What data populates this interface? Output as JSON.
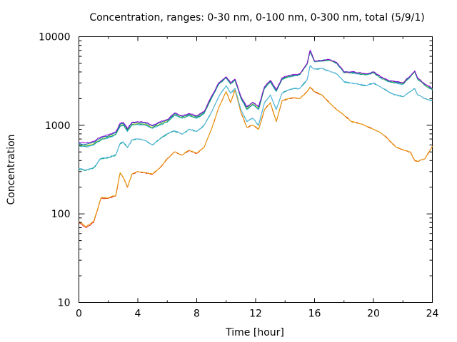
{
  "chart_data": {
    "type": "line",
    "title": "Concentration, ranges: 0-30 nm, 0-100 nm, 0-300 nm, total (5/9/1)",
    "xlabel": "Time [hour]",
    "ylabel": "Concentration",
    "xlim": [
      0,
      24
    ],
    "ylim": [
      10,
      10000
    ],
    "yscale": "log",
    "grid": false,
    "legend": "none",
    "x_ticks": [
      0,
      4,
      8,
      12,
      16,
      20,
      24
    ],
    "x_tick_labels": [
      "0",
      "4",
      "8",
      "12",
      "16",
      "20",
      "24"
    ],
    "y_ticks": [
      10,
      100,
      1000,
      10000
    ],
    "y_tick_labels": [
      "10",
      "100",
      "1000",
      "10000"
    ],
    "x": [
      0,
      0.5,
      1,
      1.5,
      2,
      2.5,
      2.8,
      3,
      3.3,
      3.6,
      4,
      4.5,
      5,
      5.5,
      6,
      6.5,
      7,
      7.5,
      8,
      8.5,
      9,
      9.5,
      10,
      10.3,
      10.6,
      11,
      11.4,
      11.8,
      12.2,
      12.6,
      13,
      13.4,
      13.8,
      14.2,
      14.6,
      15,
      15.5,
      15.7,
      16,
      16.5,
      17,
      17.5,
      18,
      18.5,
      19,
      19.5,
      20,
      20.5,
      21,
      21.5,
      22,
      22.5,
      22.8,
      23,
      23.5,
      24
    ],
    "series": [
      {
        "color": "#e51e10",
        "values": [
          80,
          70,
          80,
          150,
          150,
          160,
          290,
          260,
          200,
          280,
          300,
          290,
          280,
          330,
          420,
          500,
          460,
          520,
          480,
          560,
          900,
          1600,
          2400,
          1800,
          2500,
          1400,
          950,
          1000,
          900,
          1500,
          1800,
          1100,
          1900,
          2000,
          2050,
          2000,
          2400,
          2700,
          2400,
          2200,
          1800,
          1500,
          1300,
          1100,
          1050,
          980,
          900,
          820,
          700,
          570,
          530,
          500,
          400,
          390,
          420,
          580
        ]
      },
      {
        "color": "#009e73",
        "values": [
          320,
          310,
          330,
          420,
          430,
          460,
          620,
          650,
          560,
          680,
          700,
          670,
          600,
          700,
          800,
          860,
          790,
          900,
          850,
          1000,
          1400,
          2100,
          2800,
          2300,
          2600,
          1500,
          1100,
          1200,
          1000,
          1800,
          2200,
          1500,
          2300,
          2500,
          2600,
          2600,
          3300,
          4700,
          4300,
          4400,
          4100,
          3800,
          3100,
          3000,
          2900,
          2800,
          3000,
          2700,
          2400,
          2200,
          2100,
          2400,
          2600,
          2200,
          2000,
          1900
        ]
      },
      {
        "color": "#56b4e9",
        "values": [
          580,
          570,
          600,
          680,
          720,
          780,
          970,
          1000,
          850,
          1000,
          1020,
          1000,
          920,
          1010,
          1080,
          1300,
          1200,
          1280,
          1200,
          1350,
          2000,
          2900,
          3400,
          2900,
          3200,
          2000,
          1500,
          1700,
          1500,
          2600,
          3100,
          2400,
          3300,
          3500,
          3600,
          3700,
          4900,
          6800,
          5200,
          5300,
          5400,
          5000,
          3900,
          3900,
          3800,
          3700,
          3900,
          3400,
          3100,
          3000,
          2900,
          3500,
          4000,
          3300,
          2800,
          2500
        ]
      },
      {
        "color": "#f0e442",
        "values": [
          600,
          590,
          620,
          700,
          740,
          800,
          1000,
          1030,
          880,
          1030,
          1050,
          1030,
          950,
          1040,
          1110,
          1330,
          1230,
          1310,
          1230,
          1380,
          2050,
          2950,
          3450,
          2950,
          3250,
          2050,
          1550,
          1750,
          1550,
          2650,
          3150,
          2450,
          3350,
          3550,
          3650,
          3750,
          4950,
          6900,
          5250,
          5350,
          5450,
          5050,
          3950,
          3950,
          3850,
          3750,
          3950,
          3450,
          3150,
          3050,
          2950,
          3550,
          4050,
          3350,
          2850,
          2550
        ]
      },
      {
        "color": "#0072b2",
        "values": [
          620,
          610,
          640,
          720,
          760,
          820,
          1030,
          1060,
          900,
          1060,
          1080,
          1060,
          980,
          1070,
          1140,
          1360,
          1260,
          1340,
          1260,
          1410,
          2100,
          3000,
          3500,
          3000,
          3300,
          2100,
          1600,
          1800,
          1600,
          2700,
          3200,
          2500,
          3400,
          3600,
          3700,
          3800,
          5000,
          7000,
          5300,
          5400,
          5500,
          5100,
          4000,
          4000,
          3900,
          3800,
          4000,
          3500,
          3200,
          3100,
          3000,
          3600,
          4100,
          3400,
          2900,
          2600
        ]
      },
      {
        "color": "#e69f00",
        "values": [
          82,
          72,
          82,
          152,
          152,
          162,
          292,
          262,
          202,
          282,
          302,
          292,
          282,
          332,
          422,
          502,
          462,
          522,
          482,
          562,
          902,
          1602,
          2402,
          1802,
          2502,
          1402,
          952,
          1002,
          902,
          1502,
          1802,
          1102,
          1902,
          2002,
          2052,
          2002,
          2402,
          2702,
          2402,
          2202,
          1802,
          1502,
          1302,
          1102,
          1052,
          982,
          902,
          822,
          702,
          572,
          532,
          502,
          402,
          392,
          422,
          582
        ]
      },
      {
        "color": "#56b4e9",
        "values": [
          325,
          315,
          335,
          425,
          435,
          465,
          625,
          655,
          565,
          685,
          705,
          675,
          605,
          705,
          805,
          865,
          795,
          905,
          855,
          1005,
          1405,
          2105,
          2805,
          2305,
          2605,
          1505,
          1105,
          1205,
          1005,
          1805,
          2205,
          1505,
          2305,
          2505,
          2605,
          2605,
          3305,
          4705,
          4305,
          4405,
          4105,
          3805,
          3105,
          3005,
          2905,
          2805,
          3005,
          2705,
          2405,
          2205,
          2105,
          2405,
          2605,
          2205,
          2005,
          1905
        ]
      },
      {
        "color": "#009e73",
        "values": [
          590,
          580,
          610,
          690,
          730,
          790,
          985,
          1015,
          865,
          1015,
          1035,
          1015,
          935,
          1025,
          1095,
          1315,
          1215,
          1295,
          1215,
          1365,
          2025,
          2925,
          3425,
          2925,
          3225,
          2025,
          1525,
          1725,
          1525,
          2625,
          3125,
          2425,
          3325,
          3525,
          3625,
          3725,
          4925,
          6850,
          5225,
          5325,
          5425,
          5025,
          3925,
          3925,
          3825,
          3725,
          3925,
          3425,
          3125,
          3025,
          2925,
          3525,
          4025,
          3325,
          2825,
          2525
        ]
      },
      {
        "color": "#9400d3",
        "values": [
          640,
          630,
          660,
          740,
          780,
          840,
          1050,
          1080,
          920,
          1080,
          1100,
          1080,
          1000,
          1090,
          1160,
          1380,
          1280,
          1360,
          1280,
          1430,
          2120,
          3020,
          3520,
          3020,
          3320,
          2120,
          1620,
          1820,
          1620,
          2720,
          3220,
          2520,
          3420,
          3620,
          3720,
          3820,
          5020,
          7050,
          5320,
          5420,
          5520,
          5120,
          4020,
          4020,
          3920,
          3820,
          4020,
          3520,
          3220,
          3120,
          3020,
          3620,
          4120,
          3420,
          2920,
          2620
        ]
      }
    ]
  }
}
